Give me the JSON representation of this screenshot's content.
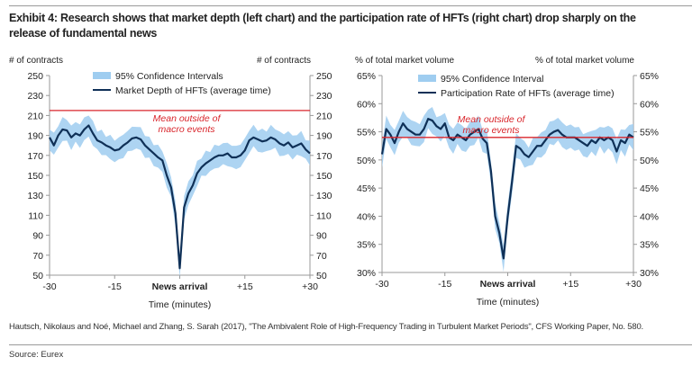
{
  "title": "Exhibit 4: Research shows that market depth (left chart) and the participation rate of HFTs (right chart) drop sharply on the release of fundamental news",
  "citation": "Hautsch, Nikolaus and Noé, Michael and Zhang, S. Sarah (2017), \"The Ambivalent Role of High-Frequency Trading in Turbulent Market Periods\", CFS Working Paper, No. 580.",
  "source": "Source: Eurex",
  "colors": {
    "line": "#0f3057",
    "band": "#9fcdf0",
    "mean": "#d9262c",
    "mean_label": "#d9262c"
  },
  "chart_data": [
    {
      "type": "line",
      "ylabel_left": "# of contracts",
      "ylabel_right": "# of contracts",
      "xlabel": "Time (minutes)",
      "xticks": [
        {
          "x": -30,
          "label": "-30"
        },
        {
          "x": -15,
          "label": "-15"
        },
        {
          "x": 0,
          "label": "News arrival"
        },
        {
          "x": 15,
          "label": "+15"
        },
        {
          "x": 30,
          "label": "+30"
        }
      ],
      "yticks": [
        "50",
        "70",
        "90",
        "110",
        "130",
        "150",
        "170",
        "190",
        "210",
        "230",
        "250"
      ],
      "xlim": [
        -30,
        30
      ],
      "ylim": [
        50,
        250
      ],
      "legend": {
        "placement": "top-center",
        "band_label": "95% Confidence Intervals",
        "line_label": "Market Depth of HFTs (average time)"
      },
      "mean_line": {
        "value": 215,
        "label_lines": [
          "Mean outside of",
          "macro events"
        ]
      },
      "ci_halfwidth": 8,
      "x": [
        -30,
        -29,
        -28,
        -27,
        -26,
        -25,
        -24,
        -23,
        -22,
        -21,
        -20,
        -19,
        -18,
        -17,
        -16,
        -15,
        -14,
        -13,
        -12,
        -11,
        -10,
        -9,
        -8,
        -7,
        -6,
        -5,
        -4,
        -3,
        -2,
        -1,
        0,
        1,
        2,
        3,
        4,
        5,
        6,
        7,
        8,
        9,
        10,
        11,
        12,
        13,
        14,
        15,
        16,
        17,
        18,
        19,
        20,
        21,
        22,
        23,
        24,
        25,
        26,
        27,
        28,
        29,
        30
      ],
      "values": [
        188,
        180,
        190,
        196,
        195,
        188,
        192,
        190,
        196,
        200,
        192,
        185,
        183,
        180,
        178,
        175,
        176,
        180,
        183,
        187,
        188,
        186,
        180,
        176,
        172,
        168,
        165,
        150,
        138,
        112,
        57,
        118,
        132,
        140,
        152,
        158,
        162,
        165,
        168,
        170,
        170,
        172,
        168,
        168,
        170,
        175,
        185,
        188,
        186,
        184,
        185,
        188,
        186,
        182,
        180,
        183,
        178,
        180,
        182,
        176,
        172
      ]
    },
    {
      "type": "line",
      "ylabel_left": "% of total market volume",
      "ylabel_right": "% of total market volume",
      "xlabel": "Time (minutes)",
      "xticks": [
        {
          "x": -30,
          "label": "-30"
        },
        {
          "x": -15,
          "label": "-15"
        },
        {
          "x": 0,
          "label": "News arrival"
        },
        {
          "x": 15,
          "label": "+15"
        },
        {
          "x": 30,
          "label": "+30"
        }
      ],
      "yticks": [
        "30%",
        "35%",
        "40%",
        "45%",
        "50%",
        "55%",
        "60%",
        "65%"
      ],
      "xlim": [
        -30,
        30
      ],
      "ylim": [
        30,
        65
      ],
      "legend": {
        "placement": "top-center",
        "band_label": "95% Confidence Interval",
        "line_label": "Participation Rate of HFTs (average time)"
      },
      "mean_line": {
        "value": 54,
        "label_lines": [
          "Mean outside of",
          "macro events"
        ]
      },
      "ci_halfwidth": 1.5,
      "x": [
        -30,
        -29,
        -28,
        -27,
        -26,
        -25,
        -24,
        -23,
        -22,
        -21,
        -20,
        -19,
        -18,
        -17,
        -16,
        -15,
        -14,
        -13,
        -12,
        -11,
        -10,
        -9,
        -8,
        -7,
        -6,
        -5,
        -4,
        -3,
        -2,
        -1,
        0,
        1,
        2,
        3,
        4,
        5,
        6,
        7,
        8,
        9,
        10,
        11,
        12,
        13,
        14,
        15,
        16,
        17,
        18,
        19,
        20,
        21,
        22,
        23,
        24,
        25,
        26,
        27,
        28,
        29,
        30
      ],
      "values": [
        51,
        55.5,
        54.5,
        53,
        55,
        56.5,
        55.5,
        55,
        54.5,
        54.5,
        55.5,
        57.3,
        57,
        56,
        55.5,
        56.5,
        54,
        53.5,
        54.5,
        54,
        53.5,
        54.5,
        55,
        55.5,
        53.8,
        53,
        48,
        40,
        37,
        32.5,
        40,
        46,
        52.5,
        52,
        51,
        50.5,
        51.5,
        52.5,
        52.5,
        53.5,
        54.5,
        55,
        55.3,
        54.5,
        54,
        54,
        54,
        53.5,
        53,
        52.5,
        53.5,
        53,
        54,
        53.5,
        54,
        53.5,
        51.5,
        53.5,
        53,
        54.5,
        54
      ]
    }
  ]
}
